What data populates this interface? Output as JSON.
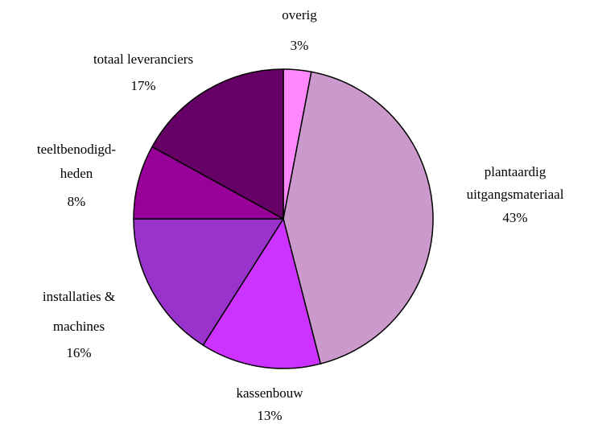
{
  "chart_data": {
    "type": "pie",
    "categories": [
      [
        "overig"
      ],
      [
        "plantaardig",
        "uitgangsmateriaal"
      ],
      [
        "kassenbouw"
      ],
      [
        "installaties &",
        "machines"
      ],
      [
        "teeltbenodigd-",
        "heden"
      ],
      [
        "totaal leveranciers"
      ]
    ],
    "values": [
      3,
      43,
      13,
      16,
      8,
      17
    ],
    "value_labels": [
      "3%",
      "43%",
      "13%",
      "16%",
      "8%",
      "17%"
    ],
    "colors": [
      "#ff88ff",
      "#cc99cc",
      "#cc33ff",
      "#9933cc",
      "#990099",
      "#660066"
    ]
  }
}
